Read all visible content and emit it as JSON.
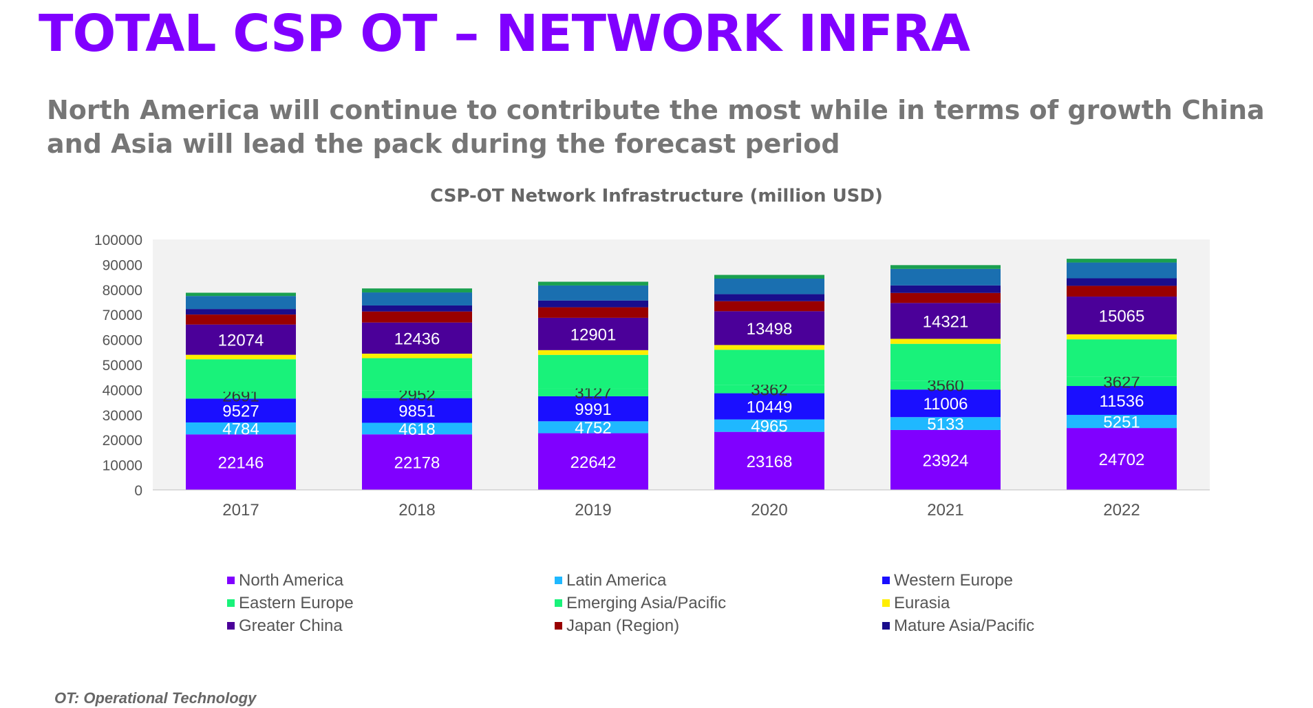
{
  "slide": {
    "title": "TOTAL CSP OT – NETWORK INFRA",
    "subtitle": "North America will continue to contribute the most while in terms of growth China and Asia will lead the pack during the forecast period",
    "footnote": "OT: Operational Technology"
  },
  "chart_data": {
    "type": "bar",
    "stacked": true,
    "title": "CSP-OT Network Infrastructure (million USD)",
    "categories": [
      "2017",
      "2018",
      "2019",
      "2020",
      "2021",
      "2022"
    ],
    "ylim": [
      0,
      100000
    ],
    "yticks": [
      "0",
      "10000",
      "20000",
      "30000",
      "40000",
      "50000",
      "60000",
      "70000",
      "80000",
      "90000",
      "100000"
    ],
    "grid": false,
    "legend_position": "bottom",
    "series": [
      {
        "name": "North America",
        "color": "#8000ff",
        "label_color": "#ffffff",
        "show_labels": true,
        "values": [
          22146,
          22178,
          22642,
          23168,
          23924,
          24702
        ]
      },
      {
        "name": "Latin America",
        "color": "#1fb8ff",
        "label_color": "#ffffff",
        "show_labels": true,
        "values": [
          4784,
          4618,
          4752,
          4965,
          5133,
          5251
        ]
      },
      {
        "name": "Western Europe",
        "color": "#1a0fff",
        "label_color": "#ffffff",
        "show_labels": true,
        "values": [
          9527,
          9851,
          9991,
          10449,
          11006,
          11536
        ]
      },
      {
        "name": "Eastern Europe",
        "color": "#19f27a",
        "label_color": "#333333",
        "show_labels": true,
        "values": [
          2691,
          2952,
          3127,
          3362,
          3560,
          3627
        ]
      },
      {
        "name": "Emerging Asia/Pacific",
        "color": "#19f27a",
        "label_color": "#333333",
        "show_labels": false,
        "values": [
          13000,
          13000,
          13400,
          14000,
          14700,
          15000
        ]
      },
      {
        "name": "Eurasia",
        "color": "#ffee00",
        "label_color": "#333333",
        "show_labels": false,
        "values": [
          1800,
          1800,
          1900,
          1900,
          2000,
          2000
        ]
      },
      {
        "name": "Greater China",
        "color": "#4b0099",
        "label_color": "#ffffff",
        "show_labels": true,
        "values": [
          12074,
          12436,
          12901,
          13498,
          14321,
          15065
        ]
      },
      {
        "name": "Japan (Region)",
        "color": "#990000",
        "label_color": "#ffffff",
        "show_labels": false,
        "values": [
          4000,
          4400,
          4200,
          4000,
          4000,
          4300
        ]
      },
      {
        "name": "Mature Asia/Pacific",
        "color": "#1a0d8c",
        "label_color": "#ffffff",
        "show_labels": false,
        "values": [
          2200,
          2400,
          2700,
          2800,
          3000,
          3000
        ]
      },
      {
        "name": "",
        "color": "#1a6fb0",
        "label_color": "#ffffff",
        "show_labels": false,
        "values": [
          5200,
          5200,
          6000,
          6200,
          6600,
          6300
        ]
      },
      {
        "name": "",
        "color": "#1aa050",
        "label_color": "#ffffff",
        "show_labels": false,
        "values": [
          1300,
          1600,
          1500,
          1500,
          1500,
          1500
        ]
      }
    ]
  }
}
